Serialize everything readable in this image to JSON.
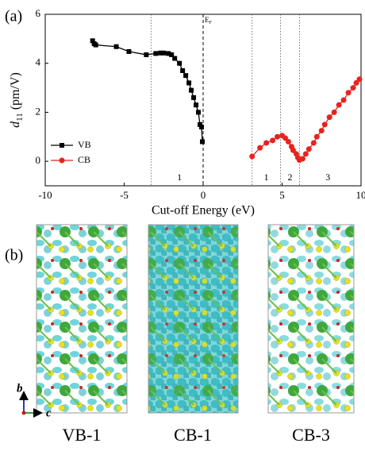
{
  "chart_data": {
    "type": "line",
    "panel_label": "(a)",
    "xlabel": "Cut-off Energy (eV)",
    "ylabel": {
      "symbol": "d",
      "subscript": "11",
      "unit": "(pm/V)"
    },
    "xlim": [
      -10,
      10
    ],
    "xticks": [
      -10,
      -5,
      0,
      5,
      10
    ],
    "ylim": [
      -1,
      6
    ],
    "yticks": [
      0,
      2,
      4,
      6
    ],
    "legend": "lower left",
    "fermi_line": {
      "x": 0,
      "label": "E",
      "label_sub": "F"
    },
    "vlines": [
      -3.3,
      3.1,
      4.9,
      6.1
    ],
    "annotations": [
      {
        "text": "1",
        "x": -1.5
      },
      {
        "text": "1",
        "x": 4.0
      },
      {
        "text": "2",
        "x": 5.5
      },
      {
        "text": "3",
        "x": 7.9
      }
    ],
    "series": [
      {
        "name": "VB",
        "color": "#000000",
        "marker": "square",
        "x": [
          -7.0,
          -6.9,
          -6.8,
          -5.5,
          -4.7,
          -3.6,
          -3.0,
          -2.7,
          -2.5,
          -2.2,
          -2.0,
          -1.8,
          -1.5,
          -1.3,
          -1.1,
          -0.9,
          -0.75,
          -0.6,
          -0.45,
          -0.3,
          -0.2,
          -0.1,
          -0.05
        ],
        "values": [
          4.92,
          4.8,
          4.75,
          4.68,
          4.48,
          4.35,
          4.4,
          4.42,
          4.42,
          4.4,
          4.35,
          4.2,
          4.0,
          3.7,
          3.5,
          3.2,
          2.9,
          2.6,
          2.3,
          2.0,
          1.5,
          1.4,
          0.8
        ]
      },
      {
        "name": "CB",
        "color": "#e8231f",
        "marker": "circle",
        "x": [
          3.1,
          3.6,
          4.0,
          4.4,
          4.7,
          5.0,
          5.2,
          5.4,
          5.6,
          5.7,
          5.9,
          6.0,
          6.1,
          6.3,
          6.5,
          6.7,
          7.0,
          7.2,
          7.5,
          7.7,
          8.0,
          8.3,
          8.6,
          8.9,
          9.2,
          9.5,
          9.7,
          9.9
        ],
        "values": [
          0.2,
          0.55,
          0.75,
          0.85,
          1.0,
          1.05,
          0.95,
          0.8,
          0.6,
          0.45,
          0.3,
          0.15,
          0.05,
          0.1,
          0.3,
          0.5,
          0.75,
          1.0,
          1.25,
          1.5,
          1.8,
          2.0,
          2.3,
          2.5,
          2.8,
          3.0,
          3.2,
          3.35
        ]
      }
    ]
  },
  "structures": {
    "panel_label": "(b)",
    "axes": {
      "b": "b",
      "c": "c"
    },
    "labels": [
      "VB-1",
      "CB-1",
      "CB-3"
    ]
  }
}
